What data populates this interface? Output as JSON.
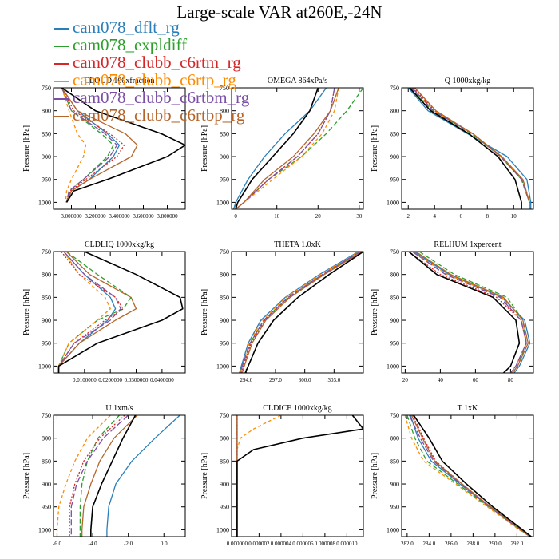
{
  "figure": {
    "title": "Large-scale VAR at260E,-24N"
  },
  "legend": [
    {
      "name": "cam078_dflt_rg",
      "color": "#2b7fb9"
    },
    {
      "name": "cam078_expldiff",
      "color": "#2ca02c"
    },
    {
      "name": "cam078_clubb_c6rtm_rg",
      "color": "#d62728"
    },
    {
      "name": "cam078_clubb_c6rtp_rg",
      "color": "#ff8c00"
    },
    {
      "name": "cam078_clubb_c6rtbm_rg",
      "color": "#7b4fa6"
    },
    {
      "name": "cam078_clubb_c6rtbp_rg",
      "color": "#b5652a"
    }
  ],
  "black_color": "#000000",
  "y_axis": {
    "label": "Pressure [hPa]",
    "range": [
      1015,
      750
    ],
    "ticks": [
      750,
      800,
      850,
      900,
      950,
      1000
    ]
  },
  "chart_data": [
    {
      "type": "line",
      "title": "CLOUD  100xfraction",
      "xlim": [
        2.85,
        3.95
      ],
      "ticks": [
        {
          "v": 3.0,
          "t": "3.000000"
        },
        {
          "v": 3.2,
          "t": "3.200000"
        },
        {
          "v": 3.4,
          "t": "3.400000"
        },
        {
          "v": 3.6,
          "t": "3.600000"
        },
        {
          "v": 3.8,
          "t": "3.800000"
        }
      ],
      "levels": [
        750,
        800,
        850,
        875,
        900,
        950,
        975,
        1000
      ],
      "series": [
        {
          "values": [
            2.92,
            3.05,
            3.3,
            3.4,
            3.35,
            3.15,
            3.0,
            2.96
          ]
        },
        {
          "values": [
            2.92,
            3.0,
            3.25,
            3.35,
            3.3,
            3.1,
            2.98,
            2.96
          ],
          "dash": "6,3"
        },
        {
          "values": [
            2.92,
            3.02,
            3.32,
            3.44,
            3.38,
            3.12,
            2.99,
            2.96
          ],
          "dash": "2,2"
        },
        {
          "values": [
            2.92,
            2.98,
            3.05,
            3.12,
            3.1,
            3.0,
            2.96,
            2.95
          ],
          "dash": "4,3"
        },
        {
          "values": [
            2.92,
            3.0,
            3.28,
            3.38,
            3.32,
            3.1,
            2.98,
            2.96
          ],
          "dash": "8,3"
        },
        {
          "values": [
            2.92,
            3.05,
            3.45,
            3.55,
            3.5,
            3.15,
            3.0,
            2.96
          ]
        },
        {
          "values": [
            2.92,
            3.2,
            3.75,
            3.95,
            3.8,
            3.3,
            3.02,
            2.96
          ],
          "black": true
        }
      ]
    },
    {
      "type": "line",
      "title": "OMEGA  864xPa/s",
      "xlim": [
        -1,
        31
      ],
      "ticks": [
        {
          "v": 0,
          "t": "0"
        },
        {
          "v": 10,
          "t": "10"
        },
        {
          "v": 20,
          "t": "20"
        },
        {
          "v": 30,
          "t": "30"
        }
      ],
      "levels": [
        750,
        800,
        850,
        900,
        950,
        1000,
        1015
      ],
      "series": [
        {
          "values": [
            22,
            18,
            12,
            7,
            3,
            0,
            -0.5
          ]
        },
        {
          "values": [
            31,
            27,
            22,
            16,
            8,
            2,
            0
          ],
          "dash": "6,3"
        },
        {
          "values": [
            24,
            23,
            20,
            15,
            8,
            2,
            0
          ],
          "dash": "2,2"
        },
        {
          "values": [
            25,
            24,
            21,
            16,
            9,
            2,
            0
          ],
          "dash": "4,3"
        },
        {
          "values": [
            24,
            23,
            20,
            15,
            8,
            2,
            0
          ],
          "dash": "8,3"
        },
        {
          "values": [
            25,
            23,
            19,
            14,
            7,
            2,
            0
          ]
        },
        {
          "values": [
            20,
            18,
            14,
            9,
            4,
            0.5,
            0
          ],
          "black": true
        }
      ]
    },
    {
      "type": "line",
      "title": "Q  1000xkg/kg",
      "xlim": [
        1.5,
        11.5
      ],
      "ticks": [
        {
          "v": 2,
          "t": "2"
        },
        {
          "v": 4,
          "t": "4"
        },
        {
          "v": 6,
          "t": "6"
        },
        {
          "v": 8,
          "t": "8"
        },
        {
          "v": 10,
          "t": "10"
        }
      ],
      "levels": [
        750,
        800,
        850,
        900,
        950,
        1000,
        1015
      ],
      "series": [
        {
          "values": [
            2.0,
            3.5,
            6.5,
            9.5,
            11.0,
            11.3,
            11.3
          ]
        },
        {
          "values": [
            2.2,
            3.8,
            6.8,
            9.0,
            10.6,
            11.2,
            11.2
          ],
          "dash": "6,3"
        },
        {
          "values": [
            2.4,
            4.0,
            6.9,
            9.0,
            10.7,
            11.2,
            11.2
          ],
          "dash": "2,2"
        },
        {
          "values": [
            2.3,
            3.9,
            6.9,
            9.0,
            10.7,
            11.2,
            11.2
          ],
          "dash": "4,3"
        },
        {
          "values": [
            2.3,
            3.9,
            6.9,
            9.0,
            10.6,
            11.2,
            11.2
          ],
          "dash": "8,3"
        },
        {
          "values": [
            2.5,
            4.1,
            6.9,
            9.1,
            10.7,
            11.2,
            11.2
          ]
        },
        {
          "values": [
            2.1,
            3.7,
            6.6,
            8.8,
            10.1,
            10.6,
            10.6
          ],
          "black": true
        }
      ]
    },
    {
      "type": "line",
      "title": "CLDLIQ  1000xkg/kg",
      "xlim": [
        -0.002,
        0.049
      ],
      "ticks": [
        {
          "v": 0.01,
          "t": "0.0100000"
        },
        {
          "v": 0.02,
          "t": "0.0200000"
        },
        {
          "v": 0.03,
          "t": "0.0300000"
        },
        {
          "v": 0.04,
          "t": "0.0400000"
        }
      ],
      "levels": [
        750,
        800,
        850,
        875,
        900,
        950,
        1000,
        1015
      ],
      "series": [
        {
          "values": [
            0.002,
            0.01,
            0.02,
            0.022,
            0.019,
            0.008,
            0.0,
            0.0
          ]
        },
        {
          "values": [
            0.003,
            0.015,
            0.028,
            0.025,
            0.015,
            0.004,
            0.0,
            0.0
          ],
          "dash": "6,3"
        },
        {
          "values": [
            0.001,
            0.008,
            0.022,
            0.025,
            0.018,
            0.006,
            0.0,
            0.0
          ],
          "dash": "2,2"
        },
        {
          "values": [
            0.002,
            0.008,
            0.018,
            0.02,
            0.015,
            0.004,
            0.0,
            0.0
          ],
          "dash": "4,3"
        },
        {
          "values": [
            0.002,
            0.01,
            0.022,
            0.024,
            0.02,
            0.006,
            0.0,
            0.0
          ],
          "dash": "8,3"
        },
        {
          "values": [
            0.003,
            0.012,
            0.028,
            0.03,
            0.022,
            0.008,
            0.0,
            0.0
          ]
        },
        {
          "values": [
            0.01,
            0.03,
            0.047,
            0.048,
            0.04,
            0.015,
            0.0,
            0.0
          ],
          "black": true
        }
      ]
    },
    {
      "type": "line",
      "title": "THETA  1.0xK",
      "xlim": [
        292.5,
        306
      ],
      "ticks": [
        {
          "v": 294,
          "t": "294.0"
        },
        {
          "v": 297,
          "t": "297.0"
        },
        {
          "v": 300,
          "t": "300.0"
        },
        {
          "v": 303,
          "t": "303.0"
        }
      ],
      "levels": [
        750,
        800,
        850,
        900,
        950,
        1000,
        1015
      ],
      "series": [
        {
          "values": [
            305.5,
            301.5,
            298.0,
            295.5,
            294.2,
            293.5,
            293.3
          ]
        },
        {
          "values": [
            305.7,
            301.8,
            298.3,
            295.8,
            294.4,
            293.6,
            293.4
          ],
          "dash": "6,3"
        },
        {
          "values": [
            305.8,
            301.9,
            298.4,
            295.9,
            294.5,
            293.7,
            293.5
          ],
          "dash": "2,2"
        },
        {
          "values": [
            305.6,
            301.6,
            298.1,
            295.6,
            294.3,
            293.6,
            293.4
          ],
          "dash": "4,3"
        },
        {
          "values": [
            305.7,
            301.8,
            298.3,
            295.8,
            294.4,
            293.6,
            293.4
          ],
          "dash": "8,3"
        },
        {
          "values": [
            305.9,
            302.0,
            298.5,
            296.0,
            294.6,
            293.8,
            293.6
          ]
        },
        {
          "values": [
            306.0,
            302.5,
            299.3,
            296.8,
            295.2,
            294.2,
            293.9
          ],
          "black": true
        }
      ]
    },
    {
      "type": "line",
      "title": "RELHUM  1xpercent",
      "xlim": [
        18,
        93
      ],
      "ticks": [
        {
          "v": 20,
          "t": "20"
        },
        {
          "v": 40,
          "t": "40"
        },
        {
          "v": 60,
          "t": "60"
        },
        {
          "v": 80,
          "t": "80"
        }
      ],
      "levels": [
        750,
        800,
        850,
        900,
        950,
        1000,
        1015
      ],
      "series": [
        {
          "values": [
            25,
            45,
            75,
            88,
            91,
            85,
            82
          ]
        },
        {
          "values": [
            28,
            48,
            78,
            87,
            89,
            84,
            81
          ],
          "dash": "6,3"
        },
        {
          "values": [
            22,
            40,
            72,
            86,
            89,
            83,
            80
          ],
          "dash": "2,2"
        },
        {
          "values": [
            24,
            44,
            75,
            86,
            89,
            83,
            80
          ],
          "dash": "4,3"
        },
        {
          "values": [
            24,
            43,
            74,
            86,
            89,
            83,
            80
          ],
          "dash": "8,3"
        },
        {
          "values": [
            26,
            46,
            76,
            87,
            90,
            84,
            81
          ]
        },
        {
          "values": [
            22,
            38,
            70,
            83,
            85,
            80,
            76
          ],
          "black": true
        }
      ]
    },
    {
      "type": "line",
      "title": "U  1xm/s",
      "xlim": [
        -6.2,
        1.2
      ],
      "ticks": [
        {
          "v": -6,
          "t": "-6.0"
        },
        {
          "v": -4,
          "t": "-4.0"
        },
        {
          "v": -2,
          "t": "-2.0"
        },
        {
          "v": 0,
          "t": "0.0"
        }
      ],
      "levels": [
        750,
        800,
        850,
        900,
        950,
        1000,
        1015
      ],
      "series": [
        {
          "values": [
            0.9,
            -0.5,
            -1.8,
            -2.7,
            -3.1,
            -3.2,
            -3.2
          ]
        },
        {
          "values": [
            -2.5,
            -3.7,
            -4.3,
            -4.6,
            -4.7,
            -4.7,
            -4.7
          ],
          "dash": "6,3"
        },
        {
          "values": [
            -2.2,
            -3.6,
            -4.5,
            -5.0,
            -5.3,
            -5.3,
            -5.3
          ],
          "dash": "2,2"
        },
        {
          "values": [
            -3.0,
            -4.3,
            -5.0,
            -5.5,
            -5.9,
            -6.0,
            -6.0
          ],
          "dash": "4,3"
        },
        {
          "values": [
            -2.0,
            -3.4,
            -4.3,
            -4.9,
            -5.2,
            -5.2,
            -5.2
          ],
          "dash": "8,3"
        },
        {
          "values": [
            -1.5,
            -2.8,
            -3.6,
            -4.1,
            -4.5,
            -4.6,
            -4.6
          ]
        },
        {
          "values": [
            -1.6,
            -2.3,
            -2.9,
            -3.5,
            -4.0,
            -4.1,
            -4.1
          ],
          "black": true
        }
      ]
    },
    {
      "type": "line",
      "title": "CLDICE  1000xkg/kg",
      "xlim": [
        -5e-07,
        1.15e-05
      ],
      "ticks": [
        {
          "v": 0,
          "t": "0.000000"
        },
        {
          "v": 2e-06,
          "t": "0.000002"
        },
        {
          "v": 4e-06,
          "t": "0.000004"
        },
        {
          "v": 6e-06,
          "t": "0.000006"
        },
        {
          "v": 8e-06,
          "t": "0.000008"
        },
        {
          "v": 1e-05,
          "t": "0.000010"
        }
      ],
      "levels": [
        750,
        780,
        800,
        825,
        850,
        875,
        900,
        1015
      ],
      "series": [
        {
          "values": [
            0,
            0,
            0,
            0,
            0,
            0,
            0,
            0
          ]
        },
        {
          "values": [
            0,
            0,
            0,
            0,
            0,
            0,
            0,
            0
          ],
          "dash": "6,3"
        },
        {
          "values": [
            0,
            0,
            0,
            0,
            0,
            0,
            0,
            0
          ],
          "dash": "2,2"
        },
        {
          "values": [
            4e-06,
            1.5e-06,
            3e-07,
            0,
            0,
            0,
            0,
            0
          ],
          "dash": "4,3"
        },
        {
          "values": [
            0,
            0,
            0,
            0,
            0,
            0,
            0,
            0
          ],
          "dash": "8,3"
        },
        {
          "values": [
            0,
            0,
            0,
            0,
            0,
            0,
            0,
            0
          ]
        },
        {
          "values": [
            1.05e-05,
            1.15e-05,
            6e-06,
            1.5e-06,
            0,
            0,
            0,
            0
          ],
          "black": true
        }
      ]
    },
    {
      "type": "line",
      "title": "T  1xK",
      "xlim": [
        281.5,
        293.5
      ],
      "ticks": [
        {
          "v": 282,
          "t": "282.0"
        },
        {
          "v": 284,
          "t": "284.0"
        },
        {
          "v": 286,
          "t": "286.0"
        },
        {
          "v": 288,
          "t": "288.0"
        },
        {
          "v": 290,
          "t": "290.0"
        },
        {
          "v": 292,
          "t": "292.0"
        }
      ],
      "levels": [
        750,
        800,
        850,
        900,
        950,
        1000,
        1015
      ],
      "series": [
        {
          "values": [
            282.3,
            283.0,
            284.2,
            286.8,
            289.5,
            292.3,
            293.2
          ]
        },
        {
          "values": [
            282.0,
            282.7,
            283.8,
            286.6,
            289.4,
            292.3,
            293.2
          ],
          "dash": "6,3"
        },
        {
          "values": [
            282.5,
            283.5,
            284.6,
            287.0,
            289.6,
            292.4,
            293.2
          ],
          "dash": "2,2"
        },
        {
          "values": [
            281.8,
            282.4,
            283.5,
            286.4,
            289.3,
            292.2,
            293.2
          ],
          "dash": "4,3"
        },
        {
          "values": [
            282.2,
            283.2,
            284.4,
            286.9,
            289.5,
            292.3,
            293.2
          ],
          "dash": "8,3"
        },
        {
          "values": [
            282.4,
            283.4,
            284.5,
            287.0,
            289.6,
            292.4,
            293.2
          ]
        },
        {
          "values": [
            282.6,
            284.0,
            285.2,
            287.4,
            289.8,
            292.5,
            293.3
          ],
          "black": true
        }
      ]
    }
  ]
}
